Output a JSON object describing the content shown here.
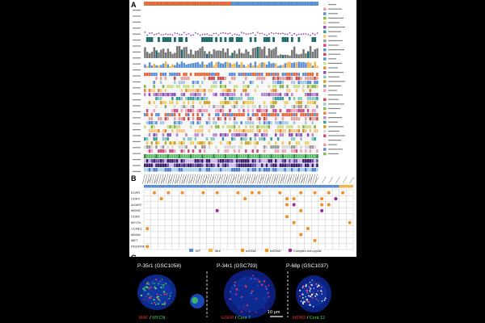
{
  "panels": {
    "a": {
      "letter": "A"
    },
    "b": {
      "letter": "B"
    },
    "c": {
      "letter": "C"
    }
  },
  "panel_b": {
    "genes": [
      "EGFR",
      "CDK4",
      "AGAP2",
      "MDM2",
      "CDK6",
      "MYCN",
      "CCNE1",
      "MDM4",
      "MET",
      "PDGFRA"
    ],
    "legend": {
      "wt": "WT",
      "mut": "Mut",
      "ecdna": "ecDNA",
      "ecdna_star": "ecDNA*",
      "complex": "Complex non-cyclic"
    },
    "colors": {
      "wt": "#5b8fd4",
      "mut": "#f5b54a",
      "ecdna": "#f0902a",
      "complex": "#9b2d9b"
    }
  },
  "panel_c": {
    "images": [
      {
        "title": "P-35r1 (GSC1058)",
        "caption_a": "MAF",
        "caption_sep": " / ",
        "caption_b": "MYCN"
      },
      {
        "title": "P-34r1 (GSC793)",
        "caption_a": "EGFR",
        "caption_sep": " / ",
        "caption_b": "Cent 7"
      },
      {
        "title": "P-68p (GSC1037)",
        "caption_a": "MDM2",
        "caption_sep": " / ",
        "caption_b": "Cent 12"
      }
    ],
    "scale_bar": "10 μm"
  }
}
